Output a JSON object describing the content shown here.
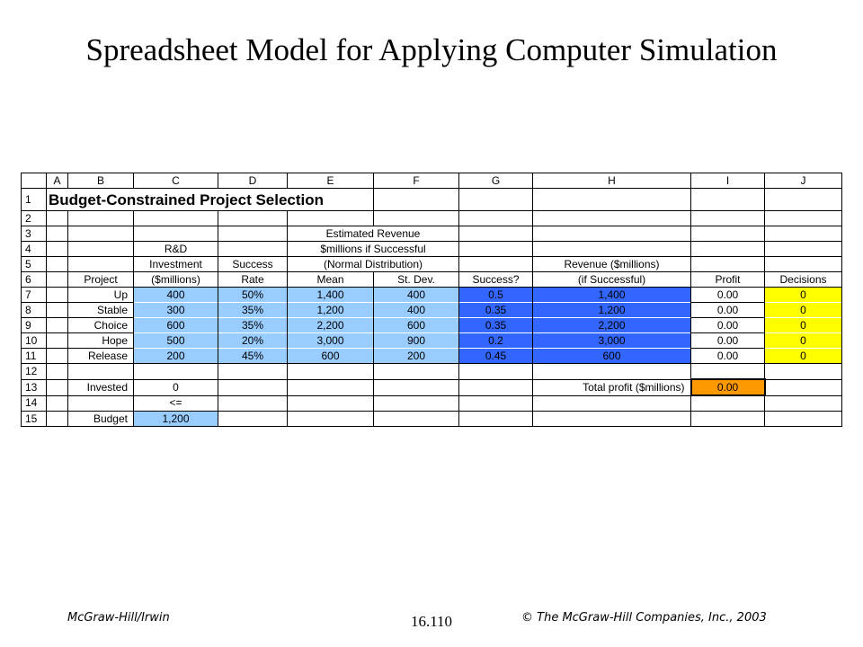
{
  "title": "Spreadsheet Model for Applying Computer Simulation",
  "sheet": {
    "columns": [
      "A",
      "B",
      "C",
      "D",
      "E",
      "F",
      "G",
      "H",
      "I",
      "J"
    ],
    "row_numbers": [
      "1",
      "2",
      "3",
      "4",
      "5",
      "6",
      "7",
      "8",
      "9",
      "10",
      "11",
      "12",
      "13",
      "14",
      "15"
    ],
    "sheet_title": "Budget-Constrained Project Selection",
    "header": {
      "r3_e": "Estimated Revenue",
      "r4_c": "R&D",
      "r4_e": "$millions if Successful",
      "r5_c": "Investment",
      "r5_d": "Success",
      "r5_e": "(Normal Distribution)",
      "r5_h": "Revenue ($millions)",
      "r6_b": "Project",
      "r6_c": "($millions)",
      "r6_d": "Rate",
      "r6_e": "Mean",
      "r6_f": "St. Dev.",
      "r6_g": "Success?",
      "r6_h": "(if Successful)",
      "r6_i": "Profit",
      "r6_j": "Decisions"
    },
    "projects": [
      {
        "name": "Up",
        "investment": "400",
        "rate": "50%",
        "mean": "1,400",
        "stdev": "400",
        "success": "0.5",
        "revenue": "1,400",
        "profit": "0.00",
        "decision": "0"
      },
      {
        "name": "Stable",
        "investment": "300",
        "rate": "35%",
        "mean": "1,200",
        "stdev": "400",
        "success": "0.35",
        "revenue": "1,200",
        "profit": "0.00",
        "decision": "0"
      },
      {
        "name": "Choice",
        "investment": "600",
        "rate": "35%",
        "mean": "2,200",
        "stdev": "600",
        "success": "0.35",
        "revenue": "2,200",
        "profit": "0.00",
        "decision": "0"
      },
      {
        "name": "Hope",
        "investment": "500",
        "rate": "20%",
        "mean": "3,000",
        "stdev": "900",
        "success": "0.2",
        "revenue": "3,000",
        "profit": "0.00",
        "decision": "0"
      },
      {
        "name": "Release",
        "investment": "200",
        "rate": "45%",
        "mean": "600",
        "stdev": "200",
        "success": "0.45",
        "revenue": "600",
        "profit": "0.00",
        "decision": "0"
      }
    ],
    "invested_label": "Invested",
    "invested_value": "0",
    "total_profit_label": "Total profit ($millions)",
    "total_profit_value": "0.00",
    "le_symbol": "<=",
    "budget_label": "Budget",
    "budget_value": "1,200"
  },
  "footer": {
    "left": "McGraw-Hill/Irwin",
    "center": "16.110",
    "right": "© The McGraw-Hill Companies, Inc., 2003"
  },
  "colors": {
    "light_blue": "#99ccff",
    "blue": "#3366ff",
    "yellow": "#ffff00",
    "orange": "#ff9900"
  }
}
